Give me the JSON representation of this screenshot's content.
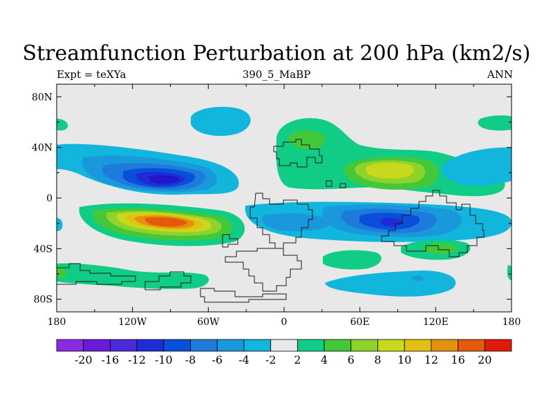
{
  "title": "Streamfunction Perturbation at 200 hPa (km2/s)",
  "subtitle_left": "Expt = teXYa",
  "subtitle_center": "390_5_MaBP",
  "subtitle_right": "ANN",
  "chart_data": {
    "type": "heatmap",
    "title": "Streamfunction Perturbation at 200 hPa (km2/s)",
    "x_ticks": [
      "180",
      "120W",
      "60W",
      "0",
      "60E",
      "120E",
      "180"
    ],
    "y_ticks": [
      "80N",
      "40N",
      "0",
      "40S",
      "80S"
    ],
    "xlim": [
      -180,
      180
    ],
    "ylim": [
      -90,
      90
    ],
    "colorbar_levels": [
      "-20",
      "-16",
      "-12",
      "-10",
      "-8",
      "-6",
      "-4",
      "-2",
      "2",
      "4",
      "6",
      "8",
      "10",
      "12",
      "16",
      "20"
    ],
    "colorbar_colors": [
      "#8a2be2",
      "#6a1bd8",
      "#4b2ad8",
      "#1e2bd6",
      "#0a4fd9",
      "#1e7bdb",
      "#1a98dc",
      "#12b6dc",
      "#e8e8e8",
      "#10cc84",
      "#42c83a",
      "#8fd22c",
      "#c8d81c",
      "#e0c010",
      "#e29010",
      "#e25a0a",
      "#e01a0a"
    ],
    "features": [
      {
        "name": "negative anomaly over North Pacific",
        "lon": -95,
        "lat": 15,
        "value": -10
      },
      {
        "name": "positive anomaly over South Pacific",
        "lon": -92,
        "lat": -20,
        "value": 16
      },
      {
        "name": "negative anomaly over Indian Ocean",
        "lon": 88,
        "lat": -20,
        "value": -10
      },
      {
        "name": "positive anomaly over Asia",
        "lon": 84,
        "lat": 22,
        "value": 8
      },
      {
        "name": "positive anomaly over North Africa / Europe",
        "lon": 30,
        "lat": 45,
        "value": 4
      },
      {
        "name": "negative anomaly over North Pacific high latitude",
        "lon": -80,
        "lat": 65,
        "value": -4
      },
      {
        "name": "negative anomaly over North America east",
        "lon": 170,
        "lat": 35,
        "value": -4
      },
      {
        "name": "positive anomaly over Southern Ocean",
        "lon": -150,
        "lat": -60,
        "value": 4
      },
      {
        "name": "negative anomaly over South Indian Ocean",
        "lon": 100,
        "lat": -65,
        "value": -4
      },
      {
        "name": "positive anomaly over South Indian Ocean",
        "lon": 120,
        "lat": -40,
        "value": 6
      }
    ]
  }
}
